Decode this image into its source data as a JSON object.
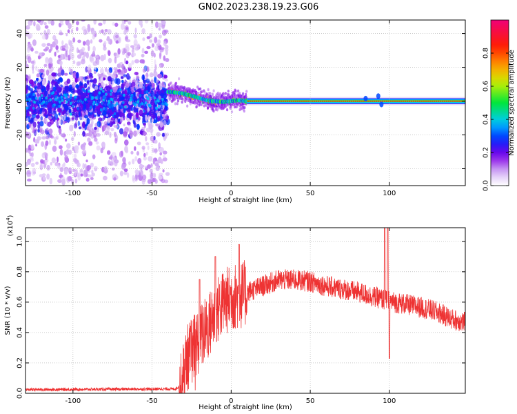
{
  "title": "GN02.2023.238.19.23.G06",
  "chart_data": [
    {
      "type": "heatmap",
      "xlabel": "Height of straight line (km)",
      "ylabel": "Frequency (Hz)",
      "xlim": [
        -130,
        148
      ],
      "ylim": [
        -50,
        48
      ],
      "xticks": [
        -100,
        -50,
        0,
        50,
        100
      ],
      "yticks": [
        -40,
        -20,
        0,
        20,
        40
      ],
      "grid": true,
      "regions": [
        {
          "name": "diffuse noise",
          "x": [
            -130,
            -40
          ],
          "spread_hz": 48
        },
        {
          "name": "flex ridge",
          "points": [
            [
              -38,
              5.5
            ],
            [
              -30,
              4.5
            ],
            [
              -22,
              2.5
            ],
            [
              -15,
              0.5
            ],
            [
              -5,
              -0.5
            ],
            [
              5,
              0.5
            ],
            [
              10,
              0
            ]
          ]
        },
        {
          "name": "steady tone",
          "x": [
            10,
            148
          ],
          "y": 0
        }
      ],
      "colorbar": {
        "label": "Normalized spectral amplitude",
        "ticks": [
          0.0,
          0.2,
          0.4,
          0.6,
          0.8
        ],
        "range": [
          0,
          1
        ]
      }
    },
    {
      "type": "line",
      "xlabel": "Height of straight line (km)",
      "ylabel": "SNR (10 * v/v)",
      "y_exponent_label": "(x10",
      "y_exponent_power": "4",
      "y_exponent_close": ")",
      "xlim": [
        -130,
        148
      ],
      "ylim": [
        0,
        1.09
      ],
      "xticks": [
        -100,
        -50,
        0,
        50,
        100
      ],
      "yticks": [
        0.0,
        0.2,
        0.4,
        0.6,
        0.8,
        1.0
      ],
      "grid": true,
      "color": "#ee3333",
      "envelope": [
        [
          -130,
          0.02
        ],
        [
          -35,
          0.025
        ],
        [
          -32,
          0.05
        ],
        [
          -28,
          0.25
        ],
        [
          -22,
          0.35
        ],
        [
          -15,
          0.45
        ],
        [
          -10,
          0.55
        ],
        [
          -5,
          0.62
        ],
        [
          0,
          0.65
        ],
        [
          10,
          0.68
        ],
        [
          20,
          0.72
        ],
        [
          30,
          0.76
        ],
        [
          40,
          0.76
        ],
        [
          50,
          0.75
        ],
        [
          60,
          0.72
        ],
        [
          70,
          0.7
        ],
        [
          80,
          0.68
        ],
        [
          90,
          0.65
        ],
        [
          100,
          0.62
        ],
        [
          110,
          0.6
        ],
        [
          120,
          0.58
        ],
        [
          130,
          0.55
        ],
        [
          140,
          0.5
        ],
        [
          148,
          0.48
        ]
      ],
      "spikes": [
        [
          -20,
          0.75
        ],
        [
          -10,
          0.9
        ],
        [
          5,
          0.98
        ],
        [
          97,
          1.09
        ],
        [
          99,
          1.09
        ],
        [
          100,
          0.23
        ]
      ]
    }
  ]
}
